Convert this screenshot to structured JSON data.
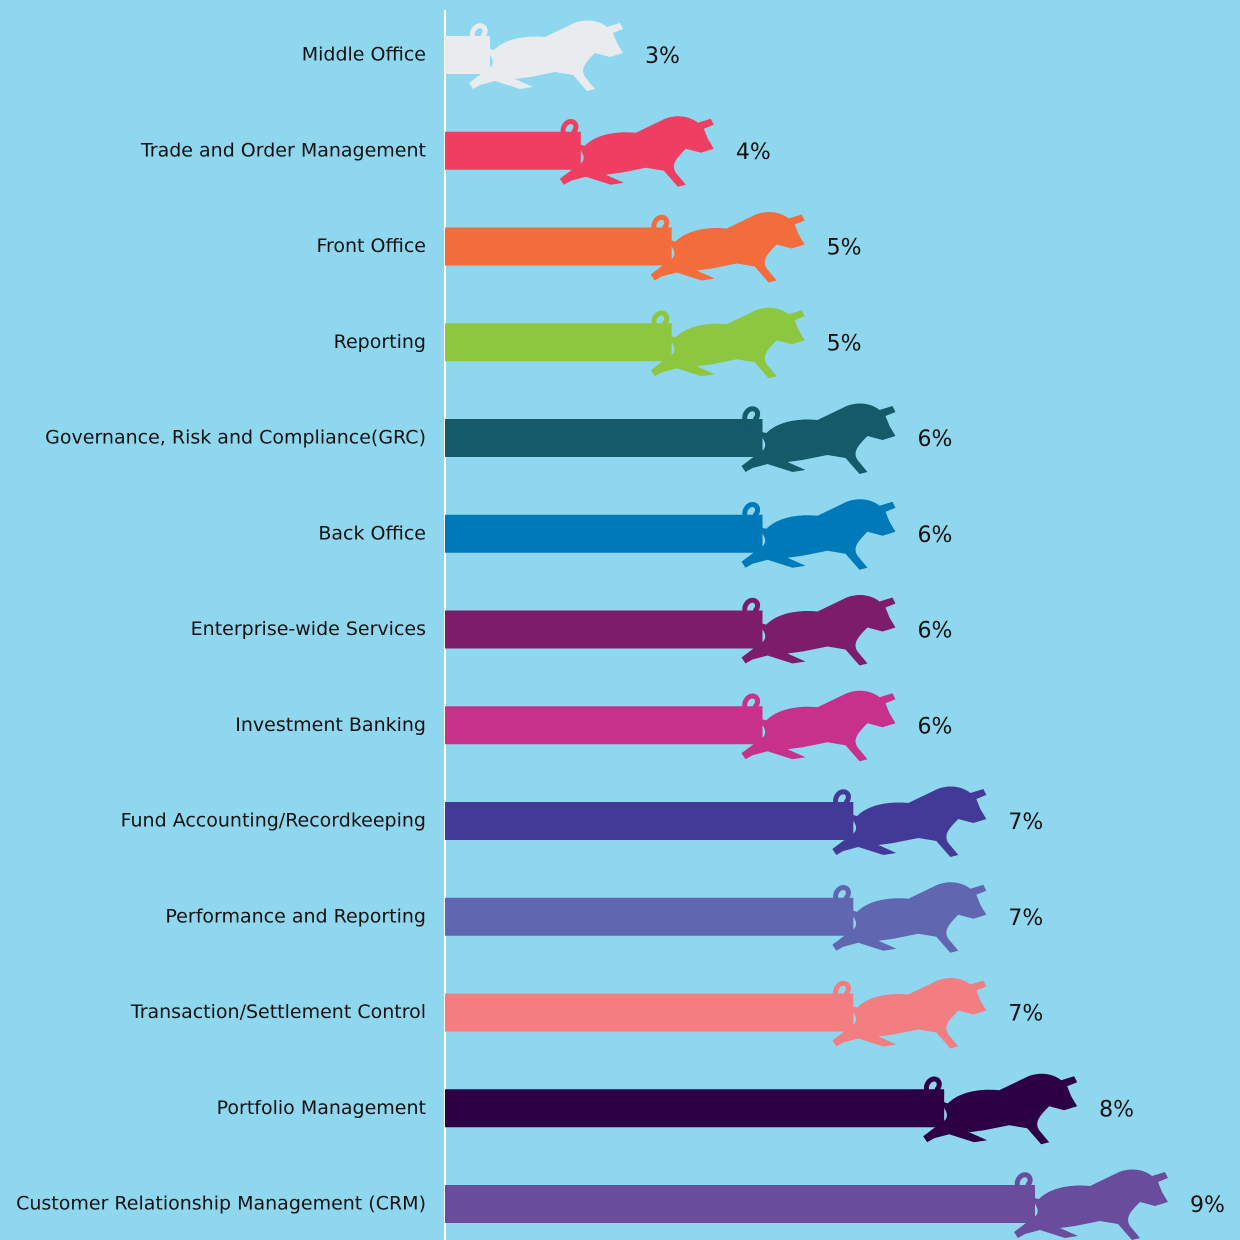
{
  "chart_data": {
    "type": "pictogram-bar",
    "categories": [
      "Middle Office",
      "Trade and Order Management",
      "Front Office",
      "Reporting",
      "Governance, Risk and Compliance(GRC)",
      "Back Office",
      "Enterprise-wide Services",
      "Investment Banking",
      "Fund Accounting/Recordkeeping",
      "Performance and Reporting",
      "Transaction/Settlement Control",
      "Portfolio Management",
      "Customer Relationship Management (CRM)"
    ],
    "values": [
      3,
      4,
      5,
      5,
      6,
      6,
      6,
      6,
      7,
      7,
      7,
      8,
      9
    ],
    "value_labels": [
      "3%",
      "4%",
      "5%",
      "5%",
      "6%",
      "6%",
      "6%",
      "6%",
      "7%",
      "7%",
      "7%",
      "8%",
      "9%"
    ],
    "colors": [
      "#e8ecef",
      "#ee3f63",
      "#f26c3c",
      "#8dc63f",
      "#145a69",
      "#0079b8",
      "#7d1c6a",
      "#c7318b",
      "#433a97",
      "#6067b0",
      "#f27e81",
      "#2d0045",
      "#6a4c9c"
    ]
  }
}
